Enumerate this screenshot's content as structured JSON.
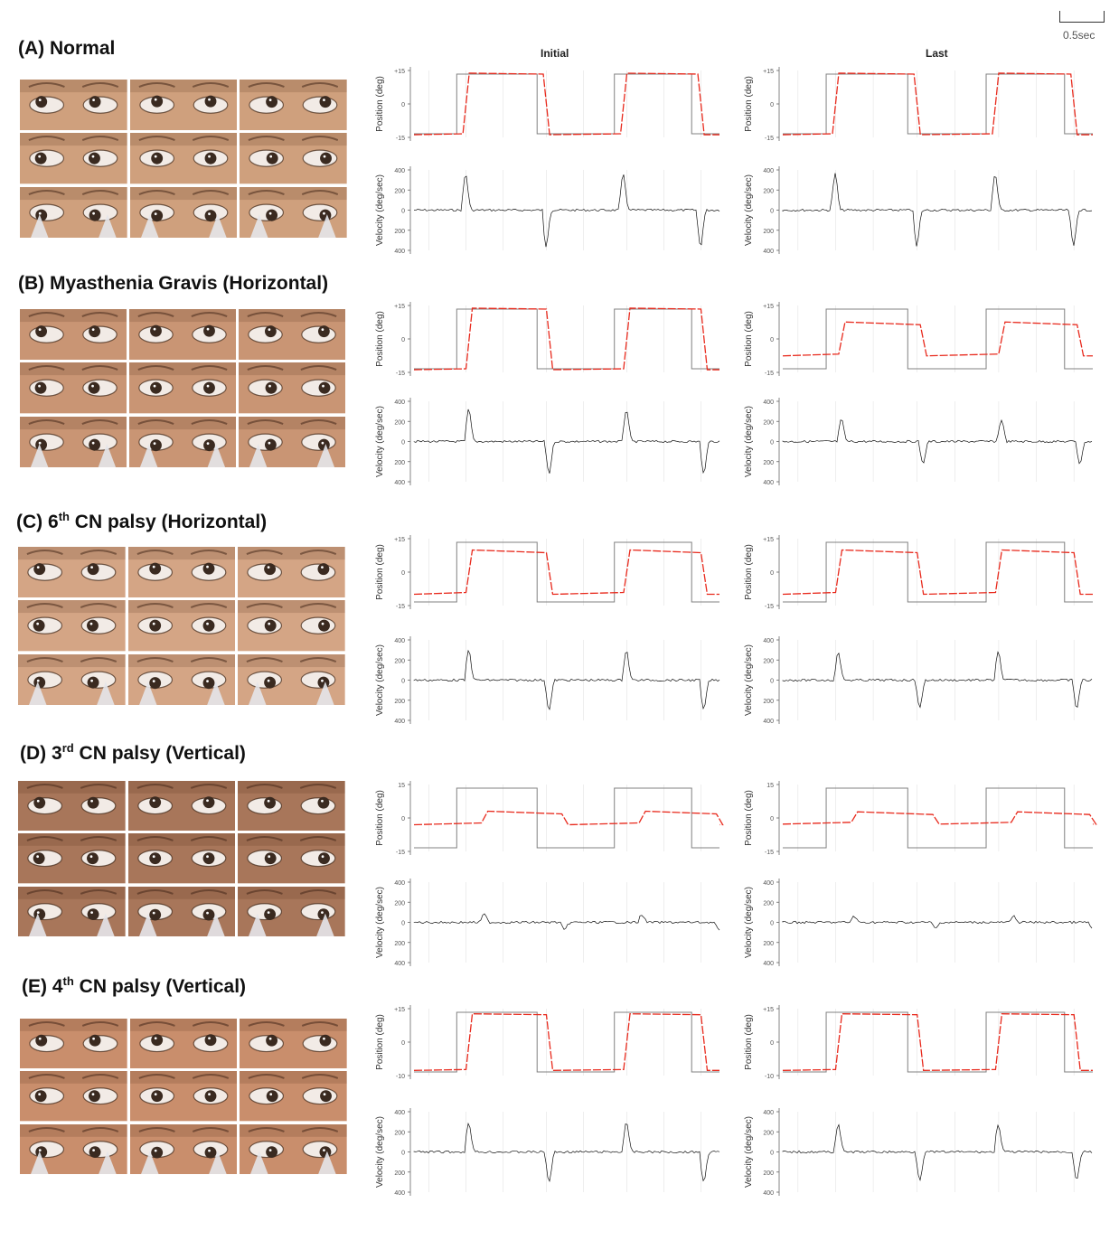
{
  "header": {
    "col_initial": "Initial",
    "col_last": "Last",
    "scale_label": "0.5sec"
  },
  "axis_labels": {
    "position": "Position (deg)",
    "velocity": "Velocity (deg/sec)"
  },
  "colors": {
    "target": "#808080",
    "eye_position": "#e8291c",
    "velocity": "#111111",
    "skin": "#c9946d"
  },
  "panels": [
    {
      "letter": "(A)",
      "title": "Normal",
      "sup": "",
      "title_suffix": "",
      "photo_tone": "#cfa07d",
      "position_ticks": [
        "+15",
        "0",
        "-15"
      ],
      "velocity_ticks": [
        "400",
        "200",
        "0",
        "200",
        "400"
      ],
      "initial": {
        "amplitude": 1.0,
        "lag": 0.02,
        "peak": 0.9
      },
      "last": {
        "amplitude": 1.0,
        "lag": 0.02,
        "peak": 0.9
      }
    },
    {
      "letter": "(B)",
      "title": "Myasthenia Gravis (Horizontal)",
      "sup": "",
      "title_suffix": "",
      "photo_tone": "#c99574",
      "position_ticks": [
        "+15",
        "0",
        "-15"
      ],
      "velocity_ticks": [
        "400",
        "200",
        "0",
        "200",
        "400"
      ],
      "initial": {
        "amplitude": 1.0,
        "lag": 0.03,
        "peak": 0.8
      },
      "last": {
        "amplitude": 0.55,
        "lag": 0.04,
        "peak": 0.55
      }
    },
    {
      "letter": "(C)",
      "title": "6",
      "sup": "th",
      "title_suffix": " CN palsy (Horizontal)",
      "photo_tone": "#d4a585",
      "position_ticks": [
        "+15",
        "0",
        "-15"
      ],
      "velocity_ticks": [
        "400",
        "200",
        "0",
        "200",
        "400"
      ],
      "initial": {
        "amplitude": 0.72,
        "lag": 0.03,
        "peak": 0.75
      },
      "last": {
        "amplitude": 0.72,
        "lag": 0.03,
        "peak": 0.7
      }
    },
    {
      "letter": "(D)",
      "title": "3",
      "sup": "rd",
      "title_suffix": " CN palsy (Vertical)",
      "photo_tone": "#a8765a",
      "position_ticks": [
        "15",
        "0",
        "-15"
      ],
      "velocity_ticks": [
        "400",
        "200",
        "0",
        "200",
        "400"
      ],
      "initial": {
        "amplitude": 0.22,
        "lag": 0.08,
        "peak": 0.2
      },
      "last": {
        "amplitude": 0.2,
        "lag": 0.08,
        "peak": 0.15
      }
    },
    {
      "letter": "(E)",
      "title": "4",
      "sup": "th",
      "title_suffix": " CN palsy (Vertical)",
      "photo_tone": "#c98e6c",
      "position_ticks": [
        "+15",
        "0",
        "-10"
      ],
      "velocity_ticks": [
        "400",
        "200",
        "0",
        "200",
        "400"
      ],
      "initial": {
        "amplitude": 0.92,
        "lag": 0.03,
        "peak": 0.75
      },
      "last": {
        "amplitude": 0.92,
        "lag": 0.03,
        "peak": 0.7
      }
    }
  ]
}
